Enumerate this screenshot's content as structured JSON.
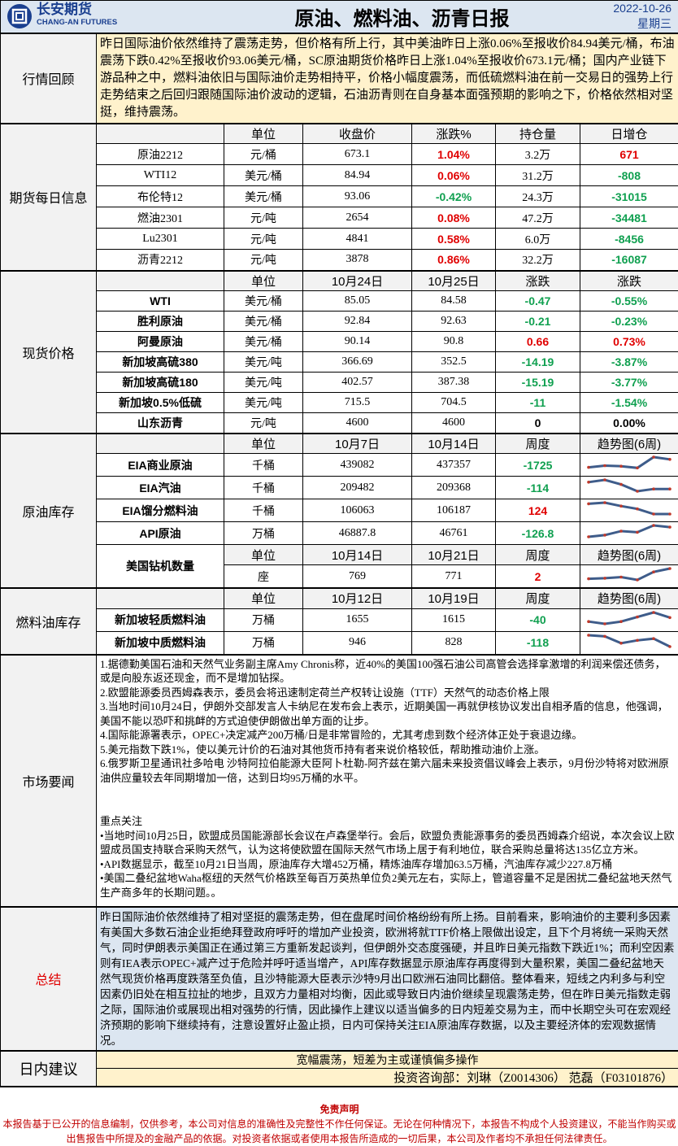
{
  "header": {
    "logo_cn": "长安期货",
    "logo_en": "CHANG-AN FUTURES",
    "title": "原油、燃料油、沥青日报",
    "date": "2022-10-26",
    "weekday": "星期三"
  },
  "review": {
    "label": "行情回顾",
    "text": "昨日国际油价依然维持了震荡走势，但价格有所上行，其中美油昨日上涨0.06%至报收价84.94美元/桶，布油震荡下跌0.42%至报收价93.06美元/桶，SC原油期货价格昨日上涨1.04%至报收价673.1元/桶；国内产业链下游品种之中，燃料油依旧与国际油价走势相持平，价格小幅度震荡，而低硫燃料油在前一交易日的强势上行走势结束之后回归跟随国际油价波动的逻辑，石油沥青则在自身基本面强预期的影响之下，价格依然相对坚挺，维持震荡。"
  },
  "futures": {
    "label": "期货每日信息",
    "headers": [
      "",
      "单位",
      "收盘价",
      "涨跌%",
      "持仓量",
      "日增仓"
    ],
    "rows": [
      [
        "原油2212",
        "元/桶",
        "673.1",
        "1.04%",
        "3.2万",
        "671"
      ],
      [
        "WTI12",
        "美元/桶",
        "84.94",
        "0.06%",
        "31.2万",
        "-808"
      ],
      [
        "布伦特12",
        "美元/桶",
        "93.06",
        "-0.42%",
        "24.3万",
        "-31015"
      ],
      [
        "燃油2301",
        "元/吨",
        "2654",
        "0.08%",
        "47.2万",
        "-34481"
      ],
      [
        "Lu2301",
        "元/吨",
        "4841",
        "0.58%",
        "6.0万",
        "-8456"
      ],
      [
        "沥青2212",
        "元/吨",
        "3878",
        "0.86%",
        "32.2万",
        "-16087"
      ]
    ]
  },
  "spot": {
    "label": "现货价格",
    "headers": [
      "",
      "单位",
      "10月24日",
      "10月25日",
      "涨跌",
      "涨跌"
    ],
    "rows": [
      [
        "WTI",
        "美元/桶",
        "85.05",
        "84.58",
        "-0.47",
        "-0.55%"
      ],
      [
        "胜利原油",
        "美元/桶",
        "92.84",
        "92.63",
        "-0.21",
        "-0.23%"
      ],
      [
        "阿曼原油",
        "美元/桶",
        "90.14",
        "90.8",
        "0.66",
        "0.73%"
      ],
      [
        "新加坡高硫380",
        "美元/吨",
        "366.69",
        "352.5",
        "-14.19",
        "-3.87%"
      ],
      [
        "新加坡高硫180",
        "美元/吨",
        "402.57",
        "387.38",
        "-15.19",
        "-3.77%"
      ],
      [
        "新加坡0.5%低硫",
        "美元/吨",
        "715.5",
        "704.5",
        "-11",
        "-1.54%"
      ],
      [
        "山东沥青",
        "元/吨",
        "4600",
        "4600",
        "0",
        "0.00%"
      ]
    ]
  },
  "inventory": {
    "label": "原油库存",
    "headers": [
      "",
      "单位",
      "10月7日",
      "10月14日",
      "周度",
      "趋势图(6周)"
    ],
    "rows": [
      {
        "cells": [
          "EIA商业原油",
          "千桶",
          "439082",
          "437357",
          "-1725"
        ],
        "trend": [
          0.1,
          0.25,
          0.2,
          0.05,
          1,
          0.8
        ]
      },
      {
        "cells": [
          "EIA汽油",
          "千桶",
          "209482",
          "209368",
          "-114"
        ],
        "trend": [
          0.8,
          1,
          0.6,
          0,
          0.2,
          0.2
        ]
      },
      {
        "cells": [
          "EIA馏分燃料油",
          "千桶",
          "106063",
          "106187",
          "124"
        ],
        "trend": [
          0.9,
          1,
          0.7,
          0.45,
          0,
          0
        ]
      },
      {
        "cells": [
          "API原油",
          "万桶",
          "46887.8",
          "46761",
          "-126.8"
        ],
        "trend": [
          0,
          0.15,
          0.5,
          0.4,
          1,
          0.85
        ]
      }
    ],
    "rig": {
      "label": "美国钻机数量",
      "headers": [
        "单位",
        "10月14日",
        "10月21日",
        "周度",
        "趋势图(6周)"
      ],
      "cells": [
        "座",
        "769",
        "771",
        "2"
      ],
      "trend": [
        0.1,
        0.15,
        0.25,
        0,
        0.7,
        1
      ]
    }
  },
  "fuel": {
    "label": "燃料油库存",
    "headers": [
      "",
      "单位",
      "10月12日",
      "10月19日",
      "周度",
      "趋势图(6周)"
    ],
    "rows": [
      {
        "cells": [
          "新加坡轻质燃料油",
          "万桶",
          "1655",
          "1615",
          "-40"
        ],
        "trend": [
          0.2,
          0,
          0.2,
          0.6,
          1,
          0.55
        ]
      },
      {
        "cells": [
          "新加坡中质燃料油",
          "万桶",
          "946",
          "828",
          "-118"
        ],
        "trend": [
          1,
          0.9,
          0.3,
          0.55,
          0.7,
          0
        ]
      }
    ]
  },
  "news": {
    "label": "市场要闻",
    "items": [
      "1.据德勤美国石油和天然气业务副主席Amy Chronis称，近40%的美国100强石油公司高管会选择拿激增的利润来偿还债务，或是向股东返还现金，而不是增加钻探。",
      "2.欧盟能源委员西姆森表示，委员会将迅速制定荷兰产权转让设施（TTF）天然气的动态价格上限",
      "3.当地时间10月24日，伊朗外交部发言人卡纳尼在发布会上表示，近期美国一再就伊核协议发出自相矛盾的信息，他强调，美国不能以恐吓和挑衅的方式迫使伊朗做出单方面的让步。",
      "4.国际能源署表示，OPEC+决定减产200万桶/日是非常冒险的，尤其考虑到数个经济体正处于衰退边缘。",
      "5.美元指数下跌1%，使以美元计价的石油对其他货币持有者来说价格较低，帮助推动油价上涨。",
      "6.俄罗斯卫星通讯社多哈电 沙特阿拉伯能源大臣阿卜杜勒-阿齐兹在第六届未来投资倡议峰会上表示，9月份沙特将对欧洲原油供应量较去年同期增加一倍，达到日均95万桶的水平。"
    ],
    "focus_title": "重点关注",
    "focus": [
      "•当地时间10月25日，欧盟成员国能源部长会议在卢森堡举行。会后，欧盟负责能源事务的委员西姆森介绍说，本次会议上欧盟成员国支持联合采购天然气，认为这将使欧盟在国际天然气市场上居于有利地位，联合采购总量将达135亿立方米。",
      "•API数据显示，截至10月21日当周，原油库存大增452万桶，精炼油库存增加63.5万桶，汽油库存减少227.8万桶",
      "•美国二叠纪盆地Waha枢纽的天然气价格跌至每百万英热单位负2美元左右，实际上，管道容量不足是困扰二叠纪盆地天然气生产商多年的长期问题。。"
    ]
  },
  "summary": {
    "label": "总结",
    "text": "昨日国际油价依然维持了相对坚挺的震荡走势，但在盘尾时间价格纷纷有所上扬。目前看来，影响油价的主要利多因素有美国大多数石油企业拒绝拜登政府呼吁的增加产业投资，欧洲将就TTF价格上限做出设定，且下个月将统一采购天然气，同时伊朗表示美国正在通过第三方重新发起谈判，但伊朗外交态度强硬，并且昨日美元指数下跌近1%；而利空因素则有IEA表示OPEC+减产过于危险并呼吁适当增产，API库存数据显示原油库存再度得到大量积累，美国二叠纪盆地天然气现货价格再度跌落至负值，且沙特能源大臣表示沙特9月出口欧洲石油同比翻倍。整体看来，短线之内利多与利空因素仍旧处在相互拉扯的地步，且双方力量相对均衡，因此或导致日内油价继续呈现震荡走势，但在昨日美元指数走弱之际，国际油价或展现出相对强势的行情，因此操作上建议以适当偏多的日内短差交易为主，而中长期空头可在宏观经济预期的影响下继续持有，注意设置好止盈止损，日内可保持关注EIA原油库存数据，以及主要经济体的宏观数据情况。"
  },
  "suggestion": {
    "label": "日内建议",
    "text": "宽幅震荡，短差为主或谨慎偏多操作",
    "author": "投资咨询部：刘琳（Z0014306） 范磊（F03101876）"
  },
  "disclaimer": {
    "title": "免责声明",
    "text": "本报告基于已公开的信息编制，仅供参考，本公司对信息的准确性及完整性不作任何保证。无论在何种情况下，本报告不构成个人投资建议，不能当作购买或出售报告中所提及的金融产品的依据。对投资者依据或者使用本报告所造成的一切后果，本公司及作者均不承担任何法律责任。"
  },
  "colors": {
    "up": "#e00000",
    "down": "#10a050",
    "title_bg": "#dce6f1",
    "review_bg": "#fff2cc",
    "label_bg": "#f2f2f2",
    "summary_label": "#e00000",
    "sparkline": "#3e5c8a",
    "sparkline_marker": "#c0392b"
  }
}
